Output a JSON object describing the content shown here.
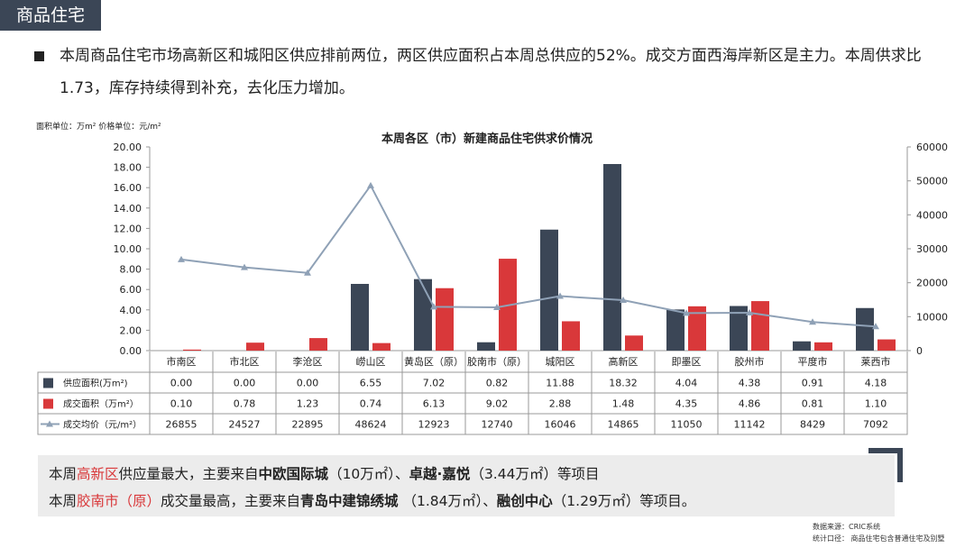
{
  "section_tag": "商品住宅",
  "summary": "本周商品住宅市场高新区和城阳区供应排前两位，两区供应面积占本周总供应的52%。成交方面西海岸新区是主力。本周供求比1.73，库存持续得到补充，去化压力增加。",
  "unit_note": "面积单位：万m² 价格单位：元/m²",
  "chart_data": {
    "type": "bar",
    "title": "本周各区（市）新建商品住宅供求价情况",
    "categories": [
      "市南区",
      "市北区",
      "李沧区",
      "崂山区",
      "黄岛区（原）",
      "胶南市（原）",
      "城阳区",
      "高新区",
      "即墨区",
      "胶州市",
      "平度市",
      "莱西市"
    ],
    "series": [
      {
        "name": "供应面积(万m²)",
        "type": "bar",
        "axis": "left",
        "color": "#3b4656",
        "values": [
          0.0,
          0.0,
          0.0,
          6.55,
          7.02,
          0.82,
          11.88,
          18.32,
          4.04,
          4.38,
          0.91,
          4.18
        ],
        "labels": [
          "0.00",
          "0.00",
          "0.00",
          "6.55",
          "7.02",
          "0.82",
          "11.88",
          "18.32",
          "4.04",
          "4.38",
          "0.91",
          "4.18"
        ]
      },
      {
        "name": "成交面积（万m²）",
        "type": "bar",
        "axis": "left",
        "color": "#d9383a",
        "values": [
          0.1,
          0.78,
          1.23,
          0.74,
          6.13,
          9.02,
          2.88,
          1.48,
          4.35,
          4.86,
          0.81,
          1.1
        ],
        "labels": [
          "0.10",
          "0.78",
          "1.23",
          "0.74",
          "6.13",
          "9.02",
          "2.88",
          "1.48",
          "4.35",
          "4.86",
          "0.81",
          "1.10"
        ]
      },
      {
        "name": "成交均价（元/m²）",
        "type": "line",
        "axis": "right",
        "color": "#8fa1b6",
        "values": [
          26855,
          24527,
          22895,
          48624,
          12923,
          12740,
          16046,
          14865,
          11050,
          11142,
          8429,
          7092
        ],
        "labels": [
          "26855",
          "24527",
          "22895",
          "48624",
          "12923",
          "12740",
          "16046",
          "14865",
          "11050",
          "11142",
          "8429",
          "7092"
        ]
      }
    ],
    "y_left": {
      "min": 0,
      "max": 20,
      "step": 2,
      "ticks": [
        "0.00",
        "2.00",
        "4.00",
        "6.00",
        "8.00",
        "10.00",
        "12.00",
        "14.00",
        "16.00",
        "18.00",
        "20.00"
      ]
    },
    "y_right": {
      "min": 0,
      "max": 60000,
      "step": 10000,
      "ticks": [
        "0",
        "10000",
        "20000",
        "30000",
        "40000",
        "50000",
        "60000"
      ]
    },
    "grid": false,
    "legend": "data-table"
  },
  "note": {
    "line1": {
      "pre": "本周",
      "hl": "高新区",
      "mid": "供应量最大，主要来自",
      "b1": "中欧国际城",
      "t1": "（10万㎡）、",
      "b2": "卓越·嘉悦",
      "t2": "（3.44万㎡）等项目"
    },
    "line2": {
      "pre": "本周",
      "hl": "胶南市（原）",
      "mid": "成交量最高，主要来自",
      "b1": "青岛中建锦绣城",
      "t1": " （1.84万㎡）、",
      "b2": "融创中心",
      "t2": "（1.29万㎡）等项目。"
    }
  },
  "footnotes": {
    "source": "数据来源：CRIC系统",
    "scope": "统计口径：  商品住宅包含普通住宅及别墅"
  }
}
